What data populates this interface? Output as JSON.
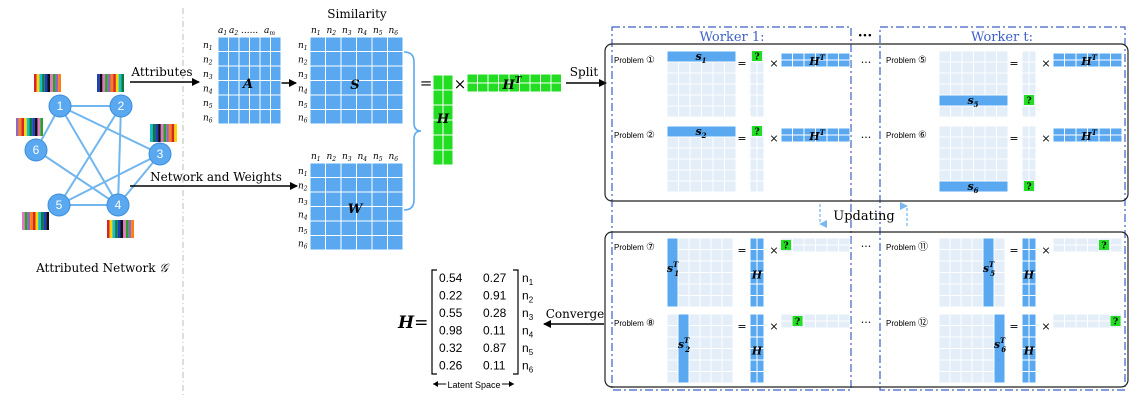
{
  "colors": {
    "matrix_blue": "#5aa9f0",
    "light_grid": "#e3eef9",
    "mid_blue": "#9ec8ef",
    "green": "#22dd22",
    "node_fill": "#5aa9f0",
    "edge_blue": "#72b6ee",
    "worker_border": "#3d5fc9",
    "worker_title": "#3d5fc9",
    "dashed_arrow": "#7ab8f0"
  },
  "network": {
    "caption": "Attributed Network",
    "caption_symbol": "𝒢",
    "nodes": [
      "1",
      "2",
      "3",
      "4",
      "5",
      "6"
    ]
  },
  "labels": {
    "attributes": "Attributes",
    "network_and_weights": "Network and Weights",
    "similarity": "Similarity",
    "split": "Split",
    "converge": "Converge",
    "updating": "Updating",
    "latent_space": "Latent Space",
    "attr_cols": [
      "a",
      "a",
      "......",
      "a"
    ],
    "attr_col_subs": [
      "1",
      "2",
      "",
      "m"
    ],
    "row_labels": [
      "n",
      "n",
      "n",
      "n",
      "n",
      "n"
    ],
    "row_subs": [
      "1",
      "2",
      "3",
      "4",
      "5",
      "6"
    ],
    "equals": "=",
    "times": "×",
    "ellipsis": "···"
  },
  "matrices": {
    "A": "A",
    "S": "S",
    "W": "W",
    "H": "H",
    "HT": "H",
    "HT_sup": "T"
  },
  "workers": {
    "worker1": "Worker 1:",
    "workert": "Worker t:"
  },
  "problems": {
    "p1": {
      "label": "Problem",
      "num": "①",
      "s": "s",
      "s_sub": "1"
    },
    "p2": {
      "label": "Problem",
      "num": "②",
      "s": "s",
      "s_sub": "2"
    },
    "p5": {
      "label": "Problem",
      "num": "⑤",
      "s": "s",
      "s_sub": "5"
    },
    "p6": {
      "label": "Problem",
      "num": "⑥",
      "s": "s",
      "s_sub": "6"
    },
    "p7": {
      "label": "Problem",
      "num": "⑦",
      "s": "s",
      "s_sub": "1"
    },
    "p8": {
      "label": "Problem",
      "num": "⑧",
      "s": "s",
      "s_sub": "2"
    },
    "p11": {
      "label": "Problem",
      "num": "⑪",
      "s": "s",
      "s_sub": "5"
    },
    "p12": {
      "label": "Problem",
      "num": "⑫",
      "s": "s",
      "s_sub": "6"
    },
    "question": "?"
  },
  "result": {
    "lhs": "H",
    "equals": "=",
    "rows": [
      {
        "c1": "0.54",
        "c2": "0.27",
        "n": "n",
        "sub": "1"
      },
      {
        "c1": "0.22",
        "c2": "0.91",
        "n": "n",
        "sub": "2"
      },
      {
        "c1": "0.55",
        "c2": "0.28",
        "n": "n",
        "sub": "3"
      },
      {
        "c1": "0.98",
        "c2": "0.11",
        "n": "n",
        "sub": "4"
      },
      {
        "c1": "0.32",
        "c2": "0.87",
        "n": "n",
        "sub": "5"
      },
      {
        "c1": "0.26",
        "c2": "0.11",
        "n": "n",
        "sub": "6"
      }
    ]
  }
}
